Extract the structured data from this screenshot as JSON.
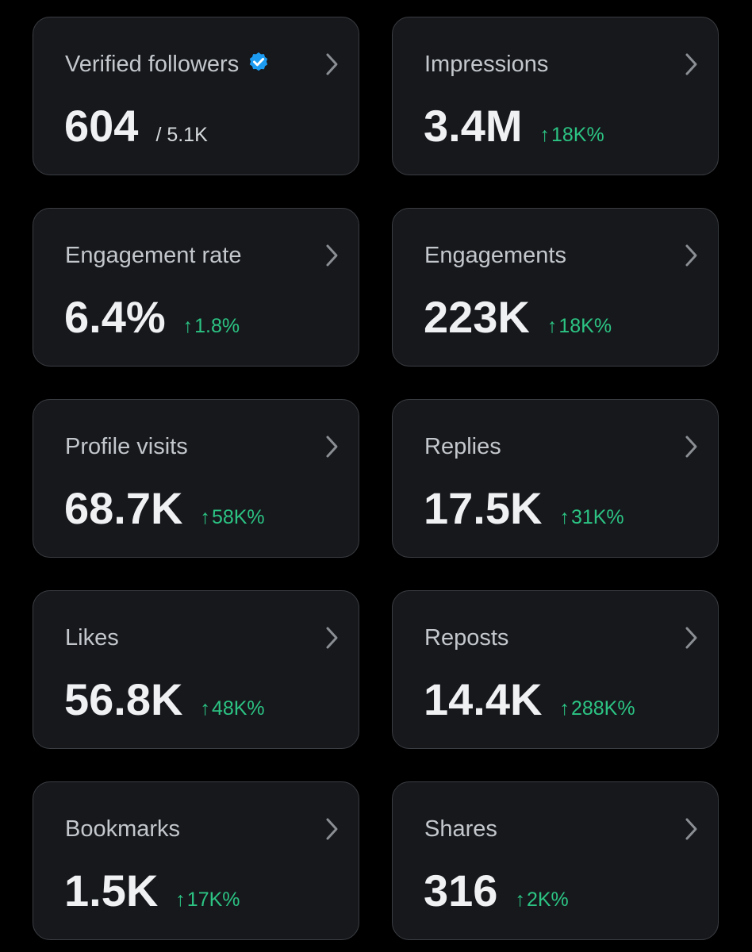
{
  "colors": {
    "background": "#000000",
    "card": "#16181c",
    "card_border": "#3a3d42",
    "label": "#c4c8cc",
    "value": "#eff1f3",
    "positive": "#2cc383",
    "verified_badge": "#1d9bf0"
  },
  "icons": {
    "chevron": "chevron-right-icon",
    "verified": "verified-badge-icon",
    "trend": "arrow-up-icon"
  },
  "cards": [
    {
      "label": "Verified followers",
      "value": "604",
      "suffix": "/ 5.1K"
    },
    {
      "label": "Impressions",
      "value": "3.4M",
      "arrow": "↑",
      "delta": "18K%"
    },
    {
      "label": "Engagement rate",
      "value": "6.4%",
      "arrow": "↑",
      "delta": "1.8%"
    },
    {
      "label": "Engagements",
      "value": "223K",
      "arrow": "↑",
      "delta": "18K%"
    },
    {
      "label": "Profile visits",
      "value": "68.7K",
      "arrow": "↑",
      "delta": "58K%"
    },
    {
      "label": "Replies",
      "value": "17.5K",
      "arrow": "↑",
      "delta": "31K%"
    },
    {
      "label": "Likes",
      "value": "56.8K",
      "arrow": "↑",
      "delta": "48K%"
    },
    {
      "label": "Reposts",
      "value": "14.4K",
      "arrow": "↑",
      "delta": "288K%"
    },
    {
      "label": "Bookmarks",
      "value": "1.5K",
      "arrow": "↑",
      "delta": "17K%"
    },
    {
      "label": "Shares",
      "value": "316",
      "arrow": "↑",
      "delta": "2K%"
    }
  ]
}
